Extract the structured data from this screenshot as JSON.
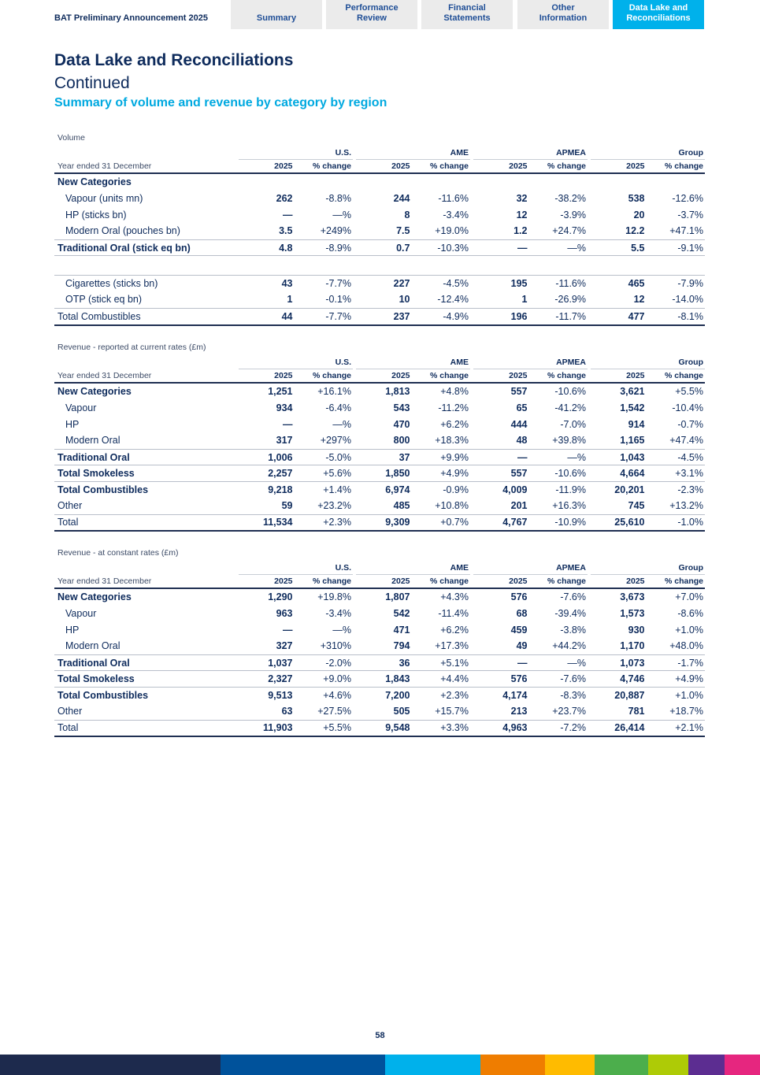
{
  "header": {
    "doc_title": "BAT Preliminary Announcement 2025",
    "tabs": [
      {
        "label": "Summary",
        "active": false
      },
      {
        "label": "Performance\nReview",
        "active": false
      },
      {
        "label": "Financial\nStatements",
        "active": false
      },
      {
        "label": "Other\nInformation",
        "active": false
      },
      {
        "label": "Data Lake and\nReconciliations",
        "active": true
      }
    ]
  },
  "page": {
    "title": "Data Lake and Reconciliations",
    "subtitle": "Continued",
    "section": "Summary of volume and revenue by category by region",
    "page_number": "58"
  },
  "colors": {
    "navy": "#0e2b5c",
    "accent": "#00b1eb",
    "bar": [
      "#1d2a4d",
      "#00529b",
      "#00b1eb",
      "#ef7d00",
      "#ffbb00",
      "#4cae4c",
      "#aecb06",
      "#5c2d91",
      "#e6267f"
    ]
  },
  "tables": [
    {
      "caption": "Volume",
      "period_label": "Year ended 31 December",
      "regions": [
        "U.S.",
        "AME",
        "APMEA",
        "Group"
      ],
      "columns": [
        "2025",
        "% change",
        "2025",
        "% change",
        "2025",
        "% change",
        "2025",
        "% change"
      ],
      "rows": [
        {
          "label": "New Categories",
          "kind": "cat",
          "values": [
            "",
            "",
            "",
            "",
            "",
            "",
            "",
            ""
          ]
        },
        {
          "label": "Vapour (units mn)",
          "kind": "sub",
          "values": [
            "262",
            "-8.8%",
            "244",
            "-11.6%",
            "32",
            "-38.2%",
            "538",
            "-12.6%"
          ]
        },
        {
          "label": "HP (sticks bn)",
          "kind": "sub",
          "values": [
            "—",
            "—%",
            "8",
            "-3.4%",
            "12",
            "-3.9%",
            "20",
            "-3.7%"
          ]
        },
        {
          "label": "Modern Oral (pouches bn)",
          "kind": "sub",
          "values": [
            "3.5",
            "+249%",
            "7.5",
            "+19.0%",
            "1.2",
            "+24.7%",
            "12.2",
            "+47.1%"
          ]
        },
        {
          "label": "Traditional Oral (stick eq bn)",
          "kind": "cat",
          "values": [
            "4.8",
            "-8.9%",
            "0.7",
            "-10.3%",
            "—",
            "—%",
            "5.5",
            "-9.1%"
          ]
        },
        {
          "label": "Cigarettes (sticks bn)",
          "kind": "sub",
          "values": [
            "43",
            "-7.7%",
            "227",
            "-4.5%",
            "195",
            "-11.6%",
            "465",
            "-7.9%"
          ]
        },
        {
          "label": "OTP (stick eq bn)",
          "kind": "sub",
          "values": [
            "1",
            "-0.1%",
            "10",
            "-12.4%",
            "1",
            "-26.9%",
            "12",
            "-14.0%"
          ]
        },
        {
          "label": "Total Combustibles",
          "kind": "plain",
          "values": [
            "44",
            "-7.7%",
            "237",
            "-4.9%",
            "196",
            "-11.7%",
            "477",
            "-8.1%"
          ]
        }
      ]
    },
    {
      "caption": "Revenue - reported at current rates (£m)",
      "period_label": "Year ended 31 December",
      "regions": [
        "U.S.",
        "AME",
        "APMEA",
        "Group"
      ],
      "columns": [
        "2025",
        "% change",
        "2025",
        "% change",
        "2025",
        "% change",
        "2025",
        "% change"
      ],
      "rows": [
        {
          "label": "New Categories",
          "kind": "cat",
          "values": [
            "1,251",
            "+16.1%",
            "1,813",
            "+4.8%",
            "557",
            "-10.6%",
            "3,621",
            "+5.5%"
          ]
        },
        {
          "label": "Vapour",
          "kind": "sub",
          "values": [
            "934",
            "-6.4%",
            "543",
            "-11.2%",
            "65",
            "-41.2%",
            "1,542",
            "-10.4%"
          ]
        },
        {
          "label": "HP",
          "kind": "sub",
          "values": [
            "—",
            "—%",
            "470",
            "+6.2%",
            "444",
            "-7.0%",
            "914",
            "-0.7%"
          ]
        },
        {
          "label": "Modern Oral",
          "kind": "sub",
          "values": [
            "317",
            "+297%",
            "800",
            "+18.3%",
            "48",
            "+39.8%",
            "1,165",
            "+47.4%"
          ]
        },
        {
          "label": "Traditional Oral",
          "kind": "cat",
          "values": [
            "1,006",
            "-5.0%",
            "37",
            "+9.9%",
            "—",
            "—%",
            "1,043",
            "-4.5%"
          ]
        },
        {
          "label": "Total Smokeless",
          "kind": "cat",
          "values": [
            "2,257",
            "+5.6%",
            "1,850",
            "+4.9%",
            "557",
            "-10.6%",
            "4,664",
            "+3.1%"
          ]
        },
        {
          "label": "Total Combustibles",
          "kind": "cat",
          "values": [
            "9,218",
            "+1.4%",
            "6,974",
            "-0.9%",
            "4,009",
            "-11.9%",
            "20,201",
            "-2.3%"
          ]
        },
        {
          "label": "Other",
          "kind": "plain",
          "values": [
            "59",
            "+23.2%",
            "485",
            "+10.8%",
            "201",
            "+16.3%",
            "745",
            "+13.2%"
          ]
        },
        {
          "label": "Total",
          "kind": "plain",
          "values": [
            "11,534",
            "+2.3%",
            "9,309",
            "+0.7%",
            "4,767",
            "-10.9%",
            "25,610",
            "-1.0%"
          ]
        }
      ]
    },
    {
      "caption": "Revenue - at constant rates (£m)",
      "period_label": "Year ended 31 December",
      "regions": [
        "U.S.",
        "AME",
        "APMEA",
        "Group"
      ],
      "columns": [
        "2025",
        "% change",
        "2025",
        "% change",
        "2025",
        "% change",
        "2025",
        "% change"
      ],
      "rows": [
        {
          "label": "New Categories",
          "kind": "cat",
          "values": [
            "1,290",
            "+19.8%",
            "1,807",
            "+4.3%",
            "576",
            "-7.6%",
            "3,673",
            "+7.0%"
          ]
        },
        {
          "label": "Vapour",
          "kind": "sub",
          "values": [
            "963",
            "-3.4%",
            "542",
            "-11.4%",
            "68",
            "-39.4%",
            "1,573",
            "-8.6%"
          ]
        },
        {
          "label": "HP",
          "kind": "sub",
          "values": [
            "—",
            "—%",
            "471",
            "+6.2%",
            "459",
            "-3.8%",
            "930",
            "+1.0%"
          ]
        },
        {
          "label": "Modern Oral",
          "kind": "sub",
          "values": [
            "327",
            "+310%",
            "794",
            "+17.3%",
            "49",
            "+44.2%",
            "1,170",
            "+48.0%"
          ]
        },
        {
          "label": "Traditional Oral",
          "kind": "cat",
          "values": [
            "1,037",
            "-2.0%",
            "36",
            "+5.1%",
            "—",
            "—%",
            "1,073",
            "-1.7%"
          ]
        },
        {
          "label": "Total Smokeless",
          "kind": "cat",
          "values": [
            "2,327",
            "+9.0%",
            "1,843",
            "+4.4%",
            "576",
            "-7.6%",
            "4,746",
            "+4.9%"
          ]
        },
        {
          "label": "Total Combustibles",
          "kind": "cat",
          "values": [
            "9,513",
            "+4.6%",
            "7,200",
            "+2.3%",
            "4,174",
            "-8.3%",
            "20,887",
            "+1.0%"
          ]
        },
        {
          "label": "Other",
          "kind": "plain",
          "values": [
            "63",
            "+27.5%",
            "505",
            "+15.7%",
            "213",
            "+23.7%",
            "781",
            "+18.7%"
          ]
        },
        {
          "label": "Total",
          "kind": "plain",
          "values": [
            "11,903",
            "+5.5%",
            "9,548",
            "+3.3%",
            "4,963",
            "-7.2%",
            "26,414",
            "+2.1%"
          ]
        }
      ]
    }
  ]
}
